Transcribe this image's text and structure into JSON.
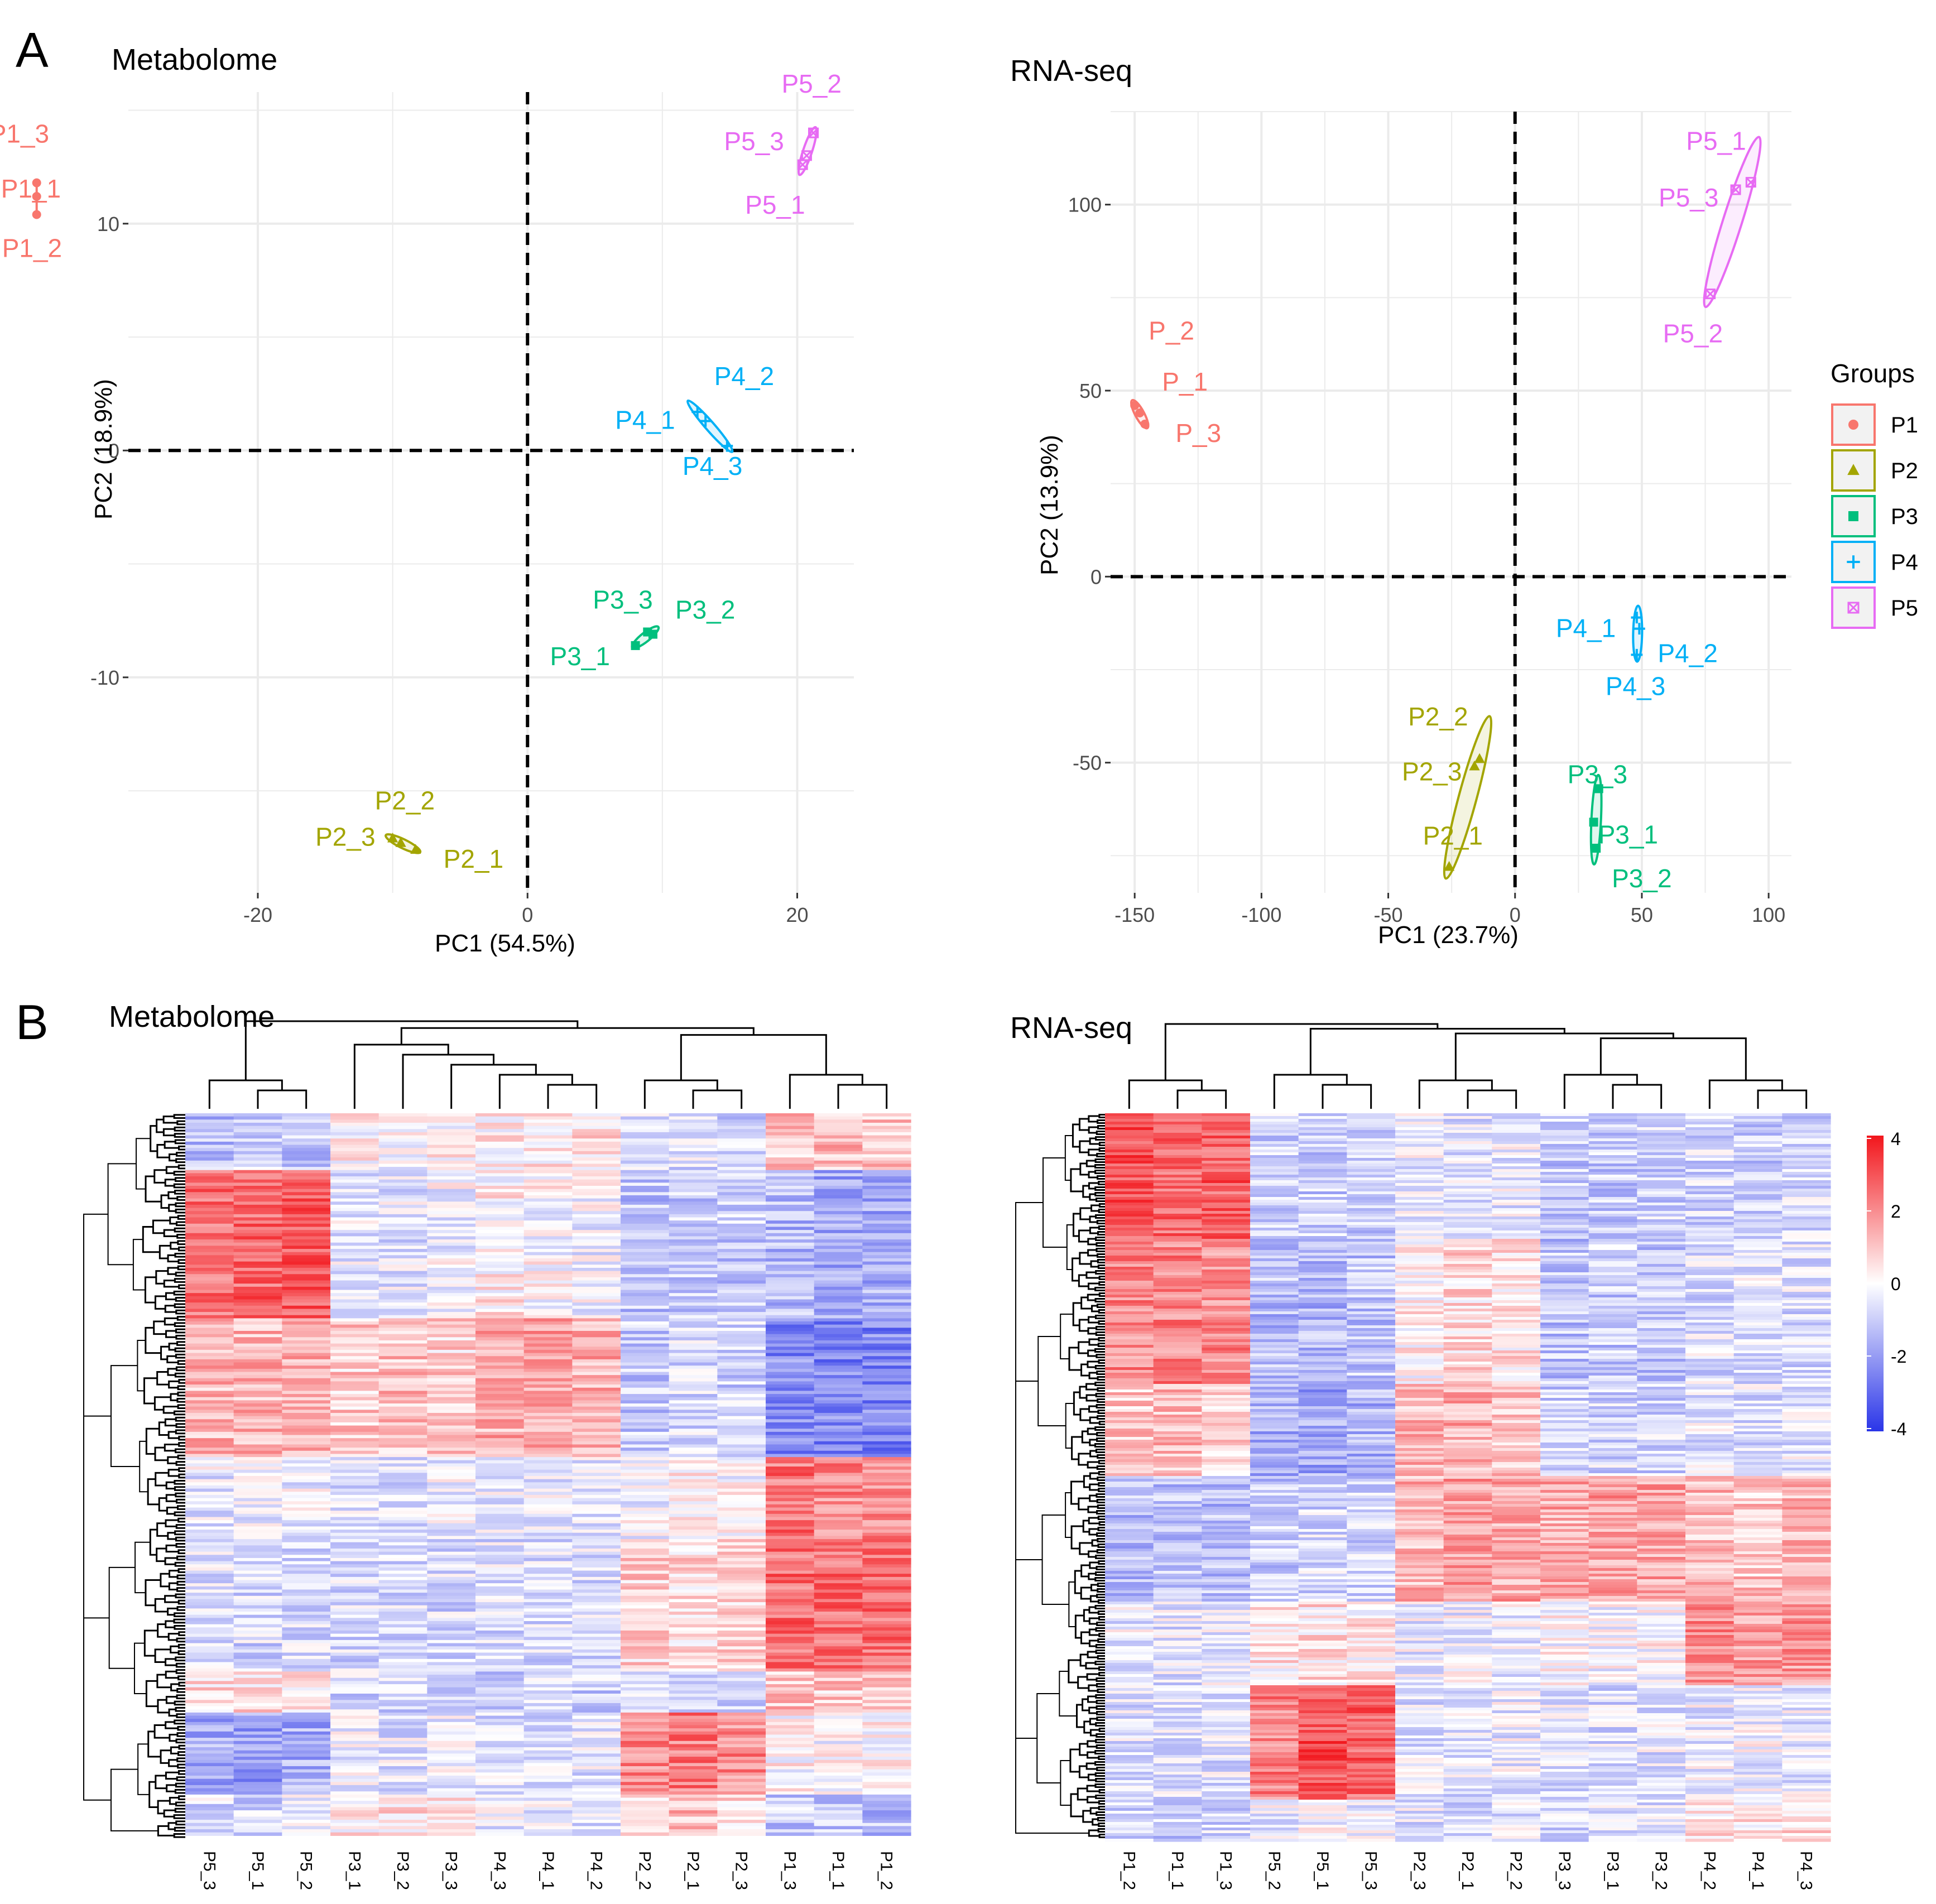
{
  "panels": {
    "a": "A",
    "b": "B"
  },
  "colors": {
    "P1": "#F8766D",
    "P2": "#A3A500",
    "P3": "#00BF7D",
    "P4": "#00B0F6",
    "P5": "#E76BF3",
    "grid": "#EBEBEB",
    "hm_low": "#2A35E8",
    "hm_mid": "#FFFFFF",
    "hm_high": "#F2161C"
  },
  "chart_data": [
    {
      "type": "scatter",
      "title": "Metabolome",
      "xlabel": "PC1 (54.5%)",
      "ylabel": "PC2 (18.9%)",
      "xlim": [
        -29.6,
        24.2
      ],
      "ylim": [
        -19.5,
        15.8
      ],
      "xticks": [
        {
          "v": -20,
          "t": "-20"
        },
        {
          "v": 0,
          "t": "0"
        },
        {
          "v": 20,
          "t": "20"
        }
      ],
      "yticks": [
        {
          "v": -10,
          "t": "-10"
        },
        {
          "v": 0,
          "t": "0"
        },
        {
          "v": 10,
          "t": "10"
        }
      ],
      "series": [
        {
          "name": "P1",
          "points": [
            {
              "label": "P1_3",
              "x": -36.4,
              "y": 11.8
            },
            {
              "label": "P1_1",
              "x": -36.4,
              "y": 11.2
            },
            {
              "label": "P1_2",
              "x": -36.4,
              "y": 10.4
            }
          ]
        },
        {
          "name": "P2",
          "points": [
            {
              "label": "P2_2",
              "x": -10.0,
              "y": -17.1
            },
            {
              "label": "P2_3",
              "x": -9.4,
              "y": -17.3
            },
            {
              "label": "P2_1",
              "x": -8.3,
              "y": -17.6
            }
          ]
        },
        {
          "name": "P3",
          "points": [
            {
              "label": "P3_3",
              "x": 8.9,
              "y": -8.0
            },
            {
              "label": "P3_2",
              "x": 9.3,
              "y": -8.1
            },
            {
              "label": "P3_1",
              "x": 8.0,
              "y": -8.6
            }
          ]
        },
        {
          "name": "P4",
          "points": [
            {
              "label": "P4_2",
              "x": 12.6,
              "y": 1.7
            },
            {
              "label": "P4_1",
              "x": 13.2,
              "y": 1.3
            },
            {
              "label": "P4_3",
              "x": 14.8,
              "y": 0.2
            }
          ]
        },
        {
          "name": "P5",
          "points": [
            {
              "label": "P5_2",
              "x": 21.2,
              "y": 14.0
            },
            {
              "label": "P5_3",
              "x": 20.7,
              "y": 13.0
            },
            {
              "label": "P5_1",
              "x": 20.4,
              "y": 12.6
            }
          ]
        }
      ]
    },
    {
      "type": "scatter",
      "title": "RNA-seq",
      "xlabel": "PC1 (23.7%)",
      "ylabel": "PC2 (13.9%)",
      "xlim": [
        -159.5,
        109.0
      ],
      "ylim": [
        -85.0,
        125.0
      ],
      "xticks": [
        {
          "v": -150,
          "t": "-150"
        },
        {
          "v": -100,
          "t": "-100"
        },
        {
          "v": -50,
          "t": "-50"
        },
        {
          "v": 0,
          "t": "0"
        },
        {
          "v": 50,
          "t": "50"
        },
        {
          "v": 100,
          "t": "100"
        }
      ],
      "yticks": [
        {
          "v": -50,
          "t": "-50"
        },
        {
          "v": 0,
          "t": "0"
        },
        {
          "v": 50,
          "t": "50"
        },
        {
          "v": 100,
          "t": "100"
        }
      ],
      "legend": {
        "title": "Groups",
        "entries": [
          "P1",
          "P2",
          "P3",
          "P4",
          "P5"
        ]
      },
      "series": [
        {
          "name": "P1",
          "points": [
            {
              "label": "P_2",
              "x": -150,
              "y": 46
            },
            {
              "label": "P_1",
              "x": -148,
              "y": 44
            },
            {
              "label": "P_3",
              "x": -146,
              "y": 41
            }
          ]
        },
        {
          "name": "P2",
          "points": [
            {
              "label": "P2_2",
              "x": -14,
              "y": -49
            },
            {
              "label": "P2_3",
              "x": -16,
              "y": -51
            },
            {
              "label": "P2_1",
              "x": -26,
              "y": -78
            }
          ]
        },
        {
          "name": "P3",
          "points": [
            {
              "label": "P3_3",
              "x": 33,
              "y": -57
            },
            {
              "label": "P3_1",
              "x": 31,
              "y": -66
            },
            {
              "label": "P3_2",
              "x": 32,
              "y": -73
            }
          ]
        },
        {
          "name": "P4",
          "points": [
            {
              "label": "P4_1",
              "x": 48,
              "y": -11
            },
            {
              "label": "P4_2",
              "x": 49,
              "y": -14
            },
            {
              "label": "P4_3",
              "x": 48,
              "y": -21
            }
          ]
        },
        {
          "name": "P5",
          "points": [
            {
              "label": "P5_1",
              "x": 93,
              "y": 106
            },
            {
              "label": "P5_3",
              "x": 87,
              "y": 104
            },
            {
              "label": "P5_2",
              "x": 77,
              "y": 76
            }
          ]
        }
      ]
    },
    {
      "type": "heatmap",
      "title": "Metabolome",
      "columns": [
        "P5_3",
        "P5_1",
        "P5_2",
        "P3_1",
        "P3_2",
        "P3_3",
        "P4_3",
        "P4_1",
        "P4_2",
        "P2_2",
        "P2_1",
        "P2_3",
        "P1_3",
        "P1_1",
        "P1_2"
      ],
      "row_blocks": [
        {
          "n": 7,
          "values": [
            -1.0,
            -0.7,
            -0.9,
            0.1,
            0.0,
            0.1,
            0.3,
            0.2,
            0.4,
            -0.6,
            -0.5,
            -0.7,
            0.8,
            0.9,
            0.9
          ]
        },
        {
          "n": 18,
          "values": [
            2.0,
            2.1,
            2.3,
            -0.3,
            -0.4,
            -0.2,
            0.2,
            0.0,
            -0.2,
            -0.9,
            -0.8,
            -0.8,
            -1.1,
            -1.4,
            -1.3
          ]
        },
        {
          "n": 17,
          "values": [
            1.0,
            1.0,
            1.1,
            0.7,
            0.9,
            0.6,
            1.1,
            1.3,
            1.1,
            -0.8,
            -0.6,
            -0.7,
            -1.8,
            -1.9,
            -1.9
          ]
        },
        {
          "n": 10,
          "values": [
            -0.3,
            -0.2,
            -0.2,
            -0.4,
            -0.4,
            -0.3,
            -0.3,
            -0.3,
            -0.4,
            -0.2,
            0.1,
            0.0,
            1.9,
            1.6,
            1.5
          ]
        },
        {
          "n": 16,
          "values": [
            -0.5,
            -0.6,
            -0.5,
            -0.6,
            -0.6,
            -0.6,
            -0.5,
            -0.6,
            -0.5,
            0.6,
            0.5,
            0.7,
            2.0,
            2.0,
            2.0
          ]
        },
        {
          "n": 5,
          "values": [
            0.4,
            0.5,
            0.3,
            -0.6,
            -0.7,
            -0.6,
            -0.9,
            -0.6,
            -0.7,
            -0.5,
            -0.4,
            -0.6,
            0.8,
            0.7,
            0.8
          ]
        },
        {
          "n": 10,
          "values": [
            -1.3,
            -1.5,
            -1.3,
            -0.2,
            -0.4,
            -0.3,
            -0.5,
            -0.6,
            -0.4,
            1.6,
            1.8,
            1.6,
            0.1,
            0.0,
            0.1
          ]
        },
        {
          "n": 5,
          "values": [
            -0.5,
            -0.6,
            -0.4,
            0.3,
            0.4,
            0.2,
            -0.3,
            -0.4,
            -0.5,
            0.6,
            0.9,
            0.5,
            -0.8,
            -0.9,
            -1.0
          ]
        }
      ]
    },
    {
      "type": "heatmap",
      "title": "RNA-seq",
      "columns": [
        "P1_2",
        "P1_1",
        "P1_3",
        "P5_2",
        "P5_1",
        "P5_3",
        "P2_3",
        "P2_1",
        "P2_2",
        "P3_3",
        "P3_1",
        "P3_2",
        "P4_2",
        "P4_1",
        "P4_3"
      ],
      "row_blocks": [
        {
          "n": 12,
          "values": [
            2.3,
            2.0,
            2.2,
            -0.7,
            -0.8,
            -0.7,
            -0.3,
            -0.4,
            -0.3,
            -0.8,
            -0.8,
            -0.7,
            -0.6,
            -0.7,
            -0.6
          ]
        },
        {
          "n": 14,
          "values": [
            1.6,
            1.7,
            1.6,
            -1.0,
            -1.1,
            -0.9,
            0.2,
            0.5,
            0.4,
            -0.9,
            -0.8,
            -0.9,
            -0.5,
            -0.4,
            -0.5
          ]
        },
        {
          "n": 9,
          "values": [
            0.8,
            0.9,
            0.7,
            -1.3,
            -1.4,
            -1.2,
            1.0,
            1.1,
            0.9,
            -0.7,
            -0.6,
            -0.7,
            -0.4,
            -0.5,
            -0.4
          ]
        },
        {
          "n": 12,
          "values": [
            -1.0,
            -0.9,
            -1.0,
            -0.8,
            -0.6,
            -0.7,
            1.0,
            1.3,
            1.2,
            1.1,
            1.3,
            1.2,
            0.9,
            0.8,
            1.0
          ]
        },
        {
          "n": 8,
          "values": [
            -0.3,
            -0.4,
            -0.3,
            0.3,
            0.4,
            0.3,
            -0.3,
            -0.2,
            -0.3,
            0.0,
            -0.1,
            0.0,
            1.5,
            1.3,
            1.4
          ]
        },
        {
          "n": 11,
          "values": [
            -0.4,
            -0.5,
            -0.4,
            1.7,
            2.4,
            2.1,
            -0.4,
            -0.5,
            -0.3,
            -0.4,
            -0.5,
            -0.4,
            -0.3,
            -0.2,
            -0.3
          ]
        },
        {
          "n": 4,
          "values": [
            -0.7,
            -0.8,
            -0.6,
            -0.3,
            -0.2,
            -0.3,
            -0.4,
            -0.5,
            -0.4,
            -0.5,
            -0.4,
            -0.5,
            0.4,
            0.3,
            0.4
          ]
        }
      ],
      "colorbar": {
        "ticks": [
          "4",
          "2",
          "0",
          "-2",
          "-4"
        ],
        "range": [
          -4,
          4
        ]
      }
    }
  ]
}
